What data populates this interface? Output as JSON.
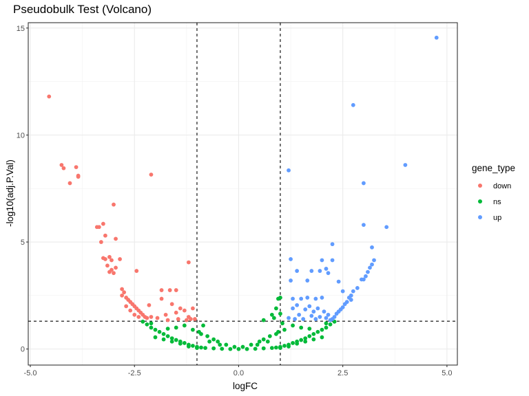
{
  "title": "Pseudobulk Test (Volcano)",
  "chart_data": {
    "type": "scatter",
    "xlabel": "logFC",
    "ylabel": "-log10(adj.P.Val)",
    "xlim": [
      -5.05,
      5.25
    ],
    "ylim": [
      -0.75,
      15.25
    ],
    "x_ticks": [
      -5.0,
      -2.5,
      0.0,
      2.5,
      5.0
    ],
    "x_tick_labels": [
      "-5.0",
      "-2.5",
      "0.0",
      "2.5",
      "5.0"
    ],
    "y_ticks": [
      0,
      5,
      10,
      15
    ],
    "y_tick_labels": [
      "0",
      "5",
      "10",
      "15"
    ],
    "grid": true,
    "vlines": [
      -1,
      1
    ],
    "hline": 1.3,
    "legend": {
      "title": "gene_type",
      "position": "right",
      "entries": [
        {
          "label": "down",
          "color": "#F8766D"
        },
        {
          "label": "ns",
          "color": "#00BA38"
        },
        {
          "label": "up",
          "color": "#619CFF"
        }
      ]
    },
    "series": [
      {
        "name": "down",
        "color": "#F8766D",
        "points": [
          [
            -4.55,
            11.8
          ],
          [
            -4.25,
            8.6
          ],
          [
            -4.2,
            8.45
          ],
          [
            -3.9,
            8.5
          ],
          [
            -4.05,
            7.75
          ],
          [
            -3.85,
            8.1
          ],
          [
            -3.85,
            8.05
          ],
          [
            -2.1,
            8.15
          ],
          [
            -3.0,
            6.75
          ],
          [
            -3.4,
            5.7
          ],
          [
            -3.35,
            5.7
          ],
          [
            -3.25,
            5.85
          ],
          [
            -3.2,
            5.3
          ],
          [
            -3.3,
            5.0
          ],
          [
            -2.95,
            5.15
          ],
          [
            -3.25,
            4.25
          ],
          [
            -3.2,
            4.2
          ],
          [
            -3.1,
            4.3
          ],
          [
            -3.05,
            4.15
          ],
          [
            -2.85,
            4.2
          ],
          [
            -3.15,
            3.9
          ],
          [
            -3.1,
            3.6
          ],
          [
            -3.05,
            3.7
          ],
          [
            -3.0,
            3.55
          ],
          [
            -2.95,
            3.8
          ],
          [
            -2.45,
            3.65
          ],
          [
            -1.2,
            4.05
          ],
          [
            -2.8,
            2.8
          ],
          [
            -2.75,
            2.65
          ],
          [
            -2.8,
            2.5
          ],
          [
            -2.7,
            2.4
          ],
          [
            -2.65,
            2.3
          ],
          [
            -2.6,
            2.2
          ],
          [
            -2.55,
            2.1
          ],
          [
            -2.5,
            2.0
          ],
          [
            -2.45,
            1.9
          ],
          [
            -2.4,
            1.8
          ],
          [
            -2.35,
            1.7
          ],
          [
            -2.3,
            1.6
          ],
          [
            -2.25,
            1.5
          ],
          [
            -2.2,
            1.45
          ],
          [
            -2.7,
            2.0
          ],
          [
            -2.6,
            1.8
          ],
          [
            -2.5,
            1.6
          ],
          [
            -2.4,
            1.5
          ],
          [
            -2.15,
            2.05
          ],
          [
            -2.1,
            1.5
          ],
          [
            -1.85,
            2.75
          ],
          [
            -1.65,
            2.75
          ],
          [
            -1.5,
            2.75
          ],
          [
            -1.85,
            2.35
          ],
          [
            -1.6,
            2.1
          ],
          [
            -1.75,
            1.6
          ],
          [
            -1.5,
            1.7
          ],
          [
            -1.4,
            1.9
          ],
          [
            -1.3,
            1.8
          ],
          [
            -1.2,
            1.5
          ],
          [
            -1.1,
            1.9
          ],
          [
            -1.05,
            1.4
          ],
          [
            -1.95,
            1.45
          ],
          [
            -1.7,
            1.35
          ],
          [
            -1.45,
            1.4
          ],
          [
            -1.25,
            1.35
          ],
          [
            -1.15,
            1.4
          ]
        ]
      },
      {
        "name": "ns",
        "color": "#00BA38",
        "points": [
          [
            -2.3,
            1.28
          ],
          [
            -2.2,
            1.15
          ],
          [
            -2.1,
            1.0
          ],
          [
            -2.0,
            0.9
          ],
          [
            -1.9,
            0.8
          ],
          [
            -1.8,
            0.7
          ],
          [
            -1.7,
            0.6
          ],
          [
            -1.6,
            0.5
          ],
          [
            -1.5,
            0.42
          ],
          [
            -1.4,
            0.35
          ],
          [
            -1.3,
            0.28
          ],
          [
            -1.2,
            0.2
          ],
          [
            -1.1,
            0.15
          ],
          [
            -1.0,
            0.1
          ],
          [
            -0.9,
            0.07
          ],
          [
            -0.8,
            0.05
          ],
          [
            -0.6,
            0.03
          ],
          [
            -0.4,
            0.01
          ],
          [
            -0.2,
            0.0
          ],
          [
            0.0,
            0.0
          ],
          [
            0.2,
            0.0
          ],
          [
            0.4,
            0.01
          ],
          [
            0.6,
            0.03
          ],
          [
            0.8,
            0.05
          ],
          [
            0.9,
            0.07
          ],
          [
            1.0,
            0.1
          ],
          [
            1.1,
            0.15
          ],
          [
            1.2,
            0.2
          ],
          [
            1.3,
            0.28
          ],
          [
            1.4,
            0.35
          ],
          [
            1.5,
            0.42
          ],
          [
            1.6,
            0.5
          ],
          [
            1.7,
            0.6
          ],
          [
            1.8,
            0.7
          ],
          [
            1.9,
            0.8
          ],
          [
            2.0,
            0.9
          ],
          [
            2.1,
            1.0
          ],
          [
            2.2,
            1.15
          ],
          [
            2.3,
            1.28
          ],
          [
            -2.0,
            0.55
          ],
          [
            -1.8,
            0.45
          ],
          [
            -1.6,
            0.35
          ],
          [
            -1.4,
            0.25
          ],
          [
            -1.2,
            0.12
          ],
          [
            -1.0,
            0.05
          ],
          [
            1.0,
            0.05
          ],
          [
            1.2,
            0.12
          ],
          [
            1.4,
            0.25
          ],
          [
            1.6,
            0.35
          ],
          [
            1.8,
            0.45
          ],
          [
            2.0,
            0.55
          ],
          [
            -1.3,
            1.1
          ],
          [
            -1.1,
            0.9
          ],
          [
            -0.95,
            0.8
          ],
          [
            -0.75,
            0.6
          ],
          [
            -0.6,
            0.45
          ],
          [
            -0.5,
            0.35
          ],
          [
            -0.3,
            0.2
          ],
          [
            -0.1,
            0.1
          ],
          [
            0.1,
            0.1
          ],
          [
            0.3,
            0.2
          ],
          [
            0.5,
            0.35
          ],
          [
            0.6,
            0.45
          ],
          [
            0.75,
            0.6
          ],
          [
            0.95,
            0.8
          ],
          [
            1.1,
            0.9
          ],
          [
            1.3,
            1.1
          ],
          [
            0.95,
            2.35
          ],
          [
            1.0,
            2.4
          ],
          [
            0.9,
            1.9
          ],
          [
            1.0,
            1.65
          ],
          [
            0.8,
            1.6
          ],
          [
            0.85,
            1.45
          ],
          [
            0.6,
            1.35
          ],
          [
            1.05,
            1.2
          ],
          [
            -0.85,
            1.1
          ],
          [
            -0.9,
            0.7
          ],
          [
            -0.7,
            0.35
          ],
          [
            -0.45,
            0.2
          ],
          [
            0.45,
            0.2
          ],
          [
            0.7,
            0.35
          ],
          [
            0.9,
            0.7
          ],
          [
            1.5,
            1.0
          ],
          [
            1.7,
            0.95
          ],
          [
            -1.5,
            1.0
          ],
          [
            -1.7,
            0.95
          ],
          [
            2.1,
            1.2
          ],
          [
            -2.1,
            1.2
          ]
        ]
      },
      {
        "name": "up",
        "color": "#619CFF",
        "points": [
          [
            4.75,
            14.55
          ],
          [
            2.75,
            11.4
          ],
          [
            4.0,
            8.6
          ],
          [
            1.2,
            8.35
          ],
          [
            3.0,
            7.75
          ],
          [
            3.0,
            5.8
          ],
          [
            3.55,
            5.7
          ],
          [
            2.25,
            4.9
          ],
          [
            3.2,
            4.75
          ],
          [
            1.25,
            4.2
          ],
          [
            2.0,
            4.15
          ],
          [
            2.25,
            4.15
          ],
          [
            3.25,
            4.15
          ],
          [
            3.2,
            3.95
          ],
          [
            3.15,
            3.8
          ],
          [
            2.1,
            3.75
          ],
          [
            1.4,
            3.65
          ],
          [
            1.75,
            3.65
          ],
          [
            1.95,
            3.65
          ],
          [
            3.1,
            3.6
          ],
          [
            2.15,
            3.55
          ],
          [
            3.05,
            3.4
          ],
          [
            3.0,
            3.25
          ],
          [
            2.95,
            3.25
          ],
          [
            1.25,
            3.2
          ],
          [
            1.65,
            3.2
          ],
          [
            2.4,
            3.15
          ],
          [
            2.85,
            2.85
          ],
          [
            2.75,
            2.7
          ],
          [
            2.5,
            2.7
          ],
          [
            2.7,
            2.5
          ],
          [
            2.65,
            2.4
          ],
          [
            2.7,
            2.3
          ],
          [
            2.6,
            2.2
          ],
          [
            2.55,
            2.1
          ],
          [
            2.5,
            1.95
          ],
          [
            2.45,
            1.85
          ],
          [
            2.4,
            1.75
          ],
          [
            2.35,
            1.65
          ],
          [
            2.3,
            1.5
          ],
          [
            2.25,
            1.4
          ],
          [
            2.2,
            1.35
          ],
          [
            1.3,
            2.35
          ],
          [
            1.5,
            2.35
          ],
          [
            1.65,
            2.4
          ],
          [
            1.85,
            2.35
          ],
          [
            2.0,
            2.4
          ],
          [
            1.4,
            2.05
          ],
          [
            1.7,
            2.0
          ],
          [
            1.9,
            1.9
          ],
          [
            1.3,
            1.9
          ],
          [
            1.6,
            1.85
          ],
          [
            1.8,
            1.75
          ],
          [
            2.05,
            1.75
          ],
          [
            1.45,
            1.6
          ],
          [
            1.75,
            1.55
          ],
          [
            1.95,
            1.5
          ],
          [
            1.2,
            1.45
          ],
          [
            1.55,
            1.4
          ],
          [
            1.85,
            1.4
          ],
          [
            2.1,
            1.45
          ],
          [
            1.35,
            1.4
          ],
          [
            2.15,
            1.6
          ]
        ]
      }
    ]
  }
}
